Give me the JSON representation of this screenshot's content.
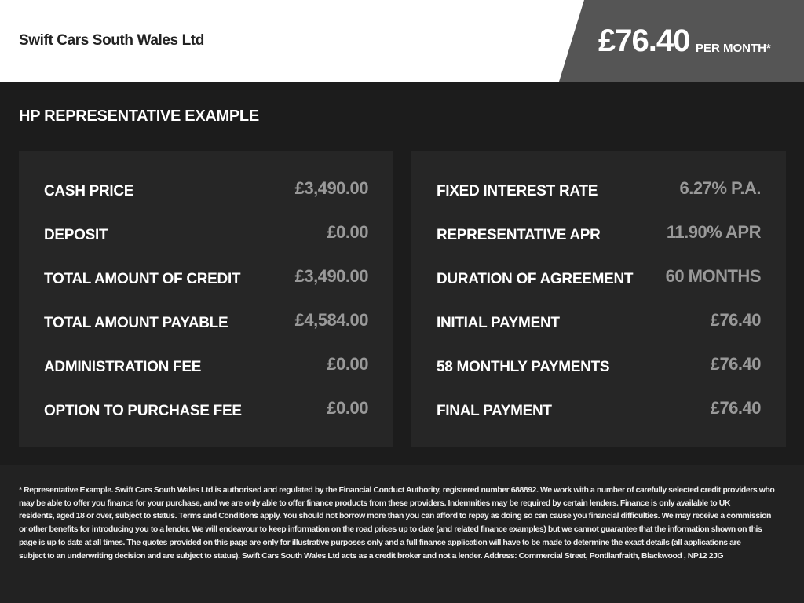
{
  "header": {
    "dealer": "Swift Cars South Wales Ltd",
    "price": "£76.40",
    "per_month": "PER MONTH*"
  },
  "title": "HP REPRESENTATIVE EXAMPLE",
  "left": [
    {
      "label": "CASH PRICE",
      "value": "£3,490.00"
    },
    {
      "label": "DEPOSIT",
      "value": "£0.00"
    },
    {
      "label": "TOTAL AMOUNT OF CREDIT",
      "value": "£3,490.00"
    },
    {
      "label": "TOTAL AMOUNT PAYABLE",
      "value": "£4,584.00"
    },
    {
      "label": "ADMINISTRATION FEE",
      "value": "£0.00"
    },
    {
      "label": "OPTION TO PURCHASE FEE",
      "value": "£0.00"
    }
  ],
  "right": [
    {
      "label": "FIXED INTEREST RATE",
      "value": "6.27% P.A."
    },
    {
      "label": "REPRESENTATIVE APR",
      "value": "11.90% APR"
    },
    {
      "label": "DURATION OF AGREEMENT",
      "value": "60 MONTHS"
    },
    {
      "label": "INITIAL PAYMENT",
      "value": "£76.40"
    },
    {
      "label": "58 MONTHLY PAYMENTS",
      "value": "£76.40"
    },
    {
      "label": "FINAL PAYMENT",
      "value": "£76.40"
    }
  ],
  "disclaimer": [
    "* Representative Example. Swift Cars South Wales Ltd  is authorised and regulated by the Financial Conduct Authority, registered number 688892. We work with a number of carefully selected credit providers who",
    "may be able to offer you finance for your purchase, and we are only able to offer finance products from these providers. Indemnities may be required by certain lenders. Finance is only available to UK",
    "residents, aged 18 or over, subject to status. Terms and Conditions apply. You should not borrow more than you can afford to repay as doing so can cause you financial difficulties. We may receive a commission",
    "or other benefits for introducing you to a lender. We will endeavour to keep information on the road prices up to date (and related finance examples) but we cannot guarantee that the information shown on this",
    "page is up to date at all times. The quotes provided on this page are only for illustrative purposes only and a full finance application will have to be made to determine the exact details (all applications are",
    "subject to an underwriting decision and are subject to status). Swift Cars South Wales Ltd  acts as a credit broker and not a lender. Address: Commercial Street, Pontllanfraith, Blackwood , NP12 2JG"
  ]
}
